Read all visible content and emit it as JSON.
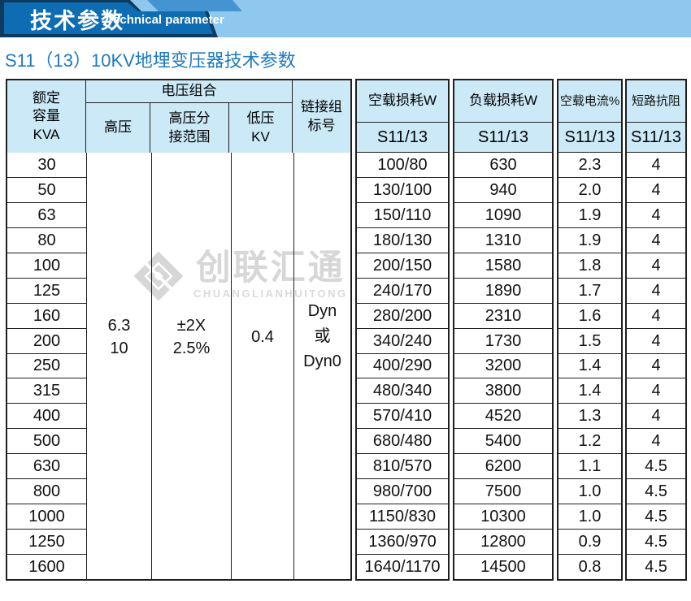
{
  "banner": {
    "title": "技术参数",
    "subtitle": "Technical parameter"
  },
  "page_subtitle": "S11（13）10KV地埋变压器技术参数",
  "watermark": {
    "name": "创联汇通",
    "latin": "CHUANGLIANHUITONG"
  },
  "colors": {
    "banner_navy": "#0d3a5f",
    "banner_blue": "#0e6cb2",
    "banner_bar_blue": "#2b83c5",
    "banner_light_blue": "#4593d0",
    "banner_underline": "#8fc8ee",
    "subtitle_blue": "#1d7ac0",
    "table_header_bg": "#cbe9f7",
    "table_border": "#1f1f1f",
    "watermark_gray": "#d7d7d7"
  },
  "table": {
    "headers": {
      "capacity": "额定\n容量\nKVA",
      "voltage_combo": "电压组合",
      "high_voltage": "高压",
      "hv_tap_range": "高压分\n接范围",
      "low_voltage": "低压\nKV",
      "link_group": "链接组\n标号",
      "no_load_loss": "空载损耗W",
      "load_loss": "负载损耗W",
      "no_load_current": "空载电流%",
      "short_circuit_impedance": "短路抗阻",
      "series": "S11/13"
    },
    "merged_values": {
      "high_voltage": "6.3\n10",
      "hv_tap_range": "±2X\n2.5%",
      "low_voltage": "0.4",
      "link_group": "Dyn\n或\nDyn0"
    },
    "rows": [
      {
        "kva": "30",
        "no_load_loss": "100/80",
        "load_loss": "630",
        "no_load_current": "2.3",
        "short_circuit_impedance": "4"
      },
      {
        "kva": "50",
        "no_load_loss": "130/100",
        "load_loss": "940",
        "no_load_current": "2.0",
        "short_circuit_impedance": "4"
      },
      {
        "kva": "63",
        "no_load_loss": "150/110",
        "load_loss": "1090",
        "no_load_current": "1.9",
        "short_circuit_impedance": "4"
      },
      {
        "kva": "80",
        "no_load_loss": "180/130",
        "load_loss": "1310",
        "no_load_current": "1.9",
        "short_circuit_impedance": "4"
      },
      {
        "kva": "100",
        "no_load_loss": "200/150",
        "load_loss": "1580",
        "no_load_current": "1.8",
        "short_circuit_impedance": "4"
      },
      {
        "kva": "125",
        "no_load_loss": "240/170",
        "load_loss": "1890",
        "no_load_current": "1.7",
        "short_circuit_impedance": "4"
      },
      {
        "kva": "160",
        "no_load_loss": "280/200",
        "load_loss": "2310",
        "no_load_current": "1.6",
        "short_circuit_impedance": "4"
      },
      {
        "kva": "200",
        "no_load_loss": "340/240",
        "load_loss": "1730",
        "no_load_current": "1.5",
        "short_circuit_impedance": "4"
      },
      {
        "kva": "250",
        "no_load_loss": "400/290",
        "load_loss": "3200",
        "no_load_current": "1.4",
        "short_circuit_impedance": "4"
      },
      {
        "kva": "315",
        "no_load_loss": "480/340",
        "load_loss": "3800",
        "no_load_current": "1.4",
        "short_circuit_impedance": "4"
      },
      {
        "kva": "400",
        "no_load_loss": "570/410",
        "load_loss": "4520",
        "no_load_current": "1.3",
        "short_circuit_impedance": "4"
      },
      {
        "kva": "500",
        "no_load_loss": "680/480",
        "load_loss": "5400",
        "no_load_current": "1.2",
        "short_circuit_impedance": "4"
      },
      {
        "kva": "630",
        "no_load_loss": "810/570",
        "load_loss": "6200",
        "no_load_current": "1.1",
        "short_circuit_impedance": "4.5"
      },
      {
        "kva": "800",
        "no_load_loss": "980/700",
        "load_loss": "7500",
        "no_load_current": "1.0",
        "short_circuit_impedance": "4.5"
      },
      {
        "kva": "1000",
        "no_load_loss": "1150/830",
        "load_loss": "10300",
        "no_load_current": "1.0",
        "short_circuit_impedance": "4.5"
      },
      {
        "kva": "1250",
        "no_load_loss": "1360/970",
        "load_loss": "12800",
        "no_load_current": "0.9",
        "short_circuit_impedance": "4.5"
      },
      {
        "kva": "1600",
        "no_load_loss": "1640/1170",
        "load_loss": "14500",
        "no_load_current": "0.8",
        "short_circuit_impedance": "4.5"
      }
    ]
  }
}
